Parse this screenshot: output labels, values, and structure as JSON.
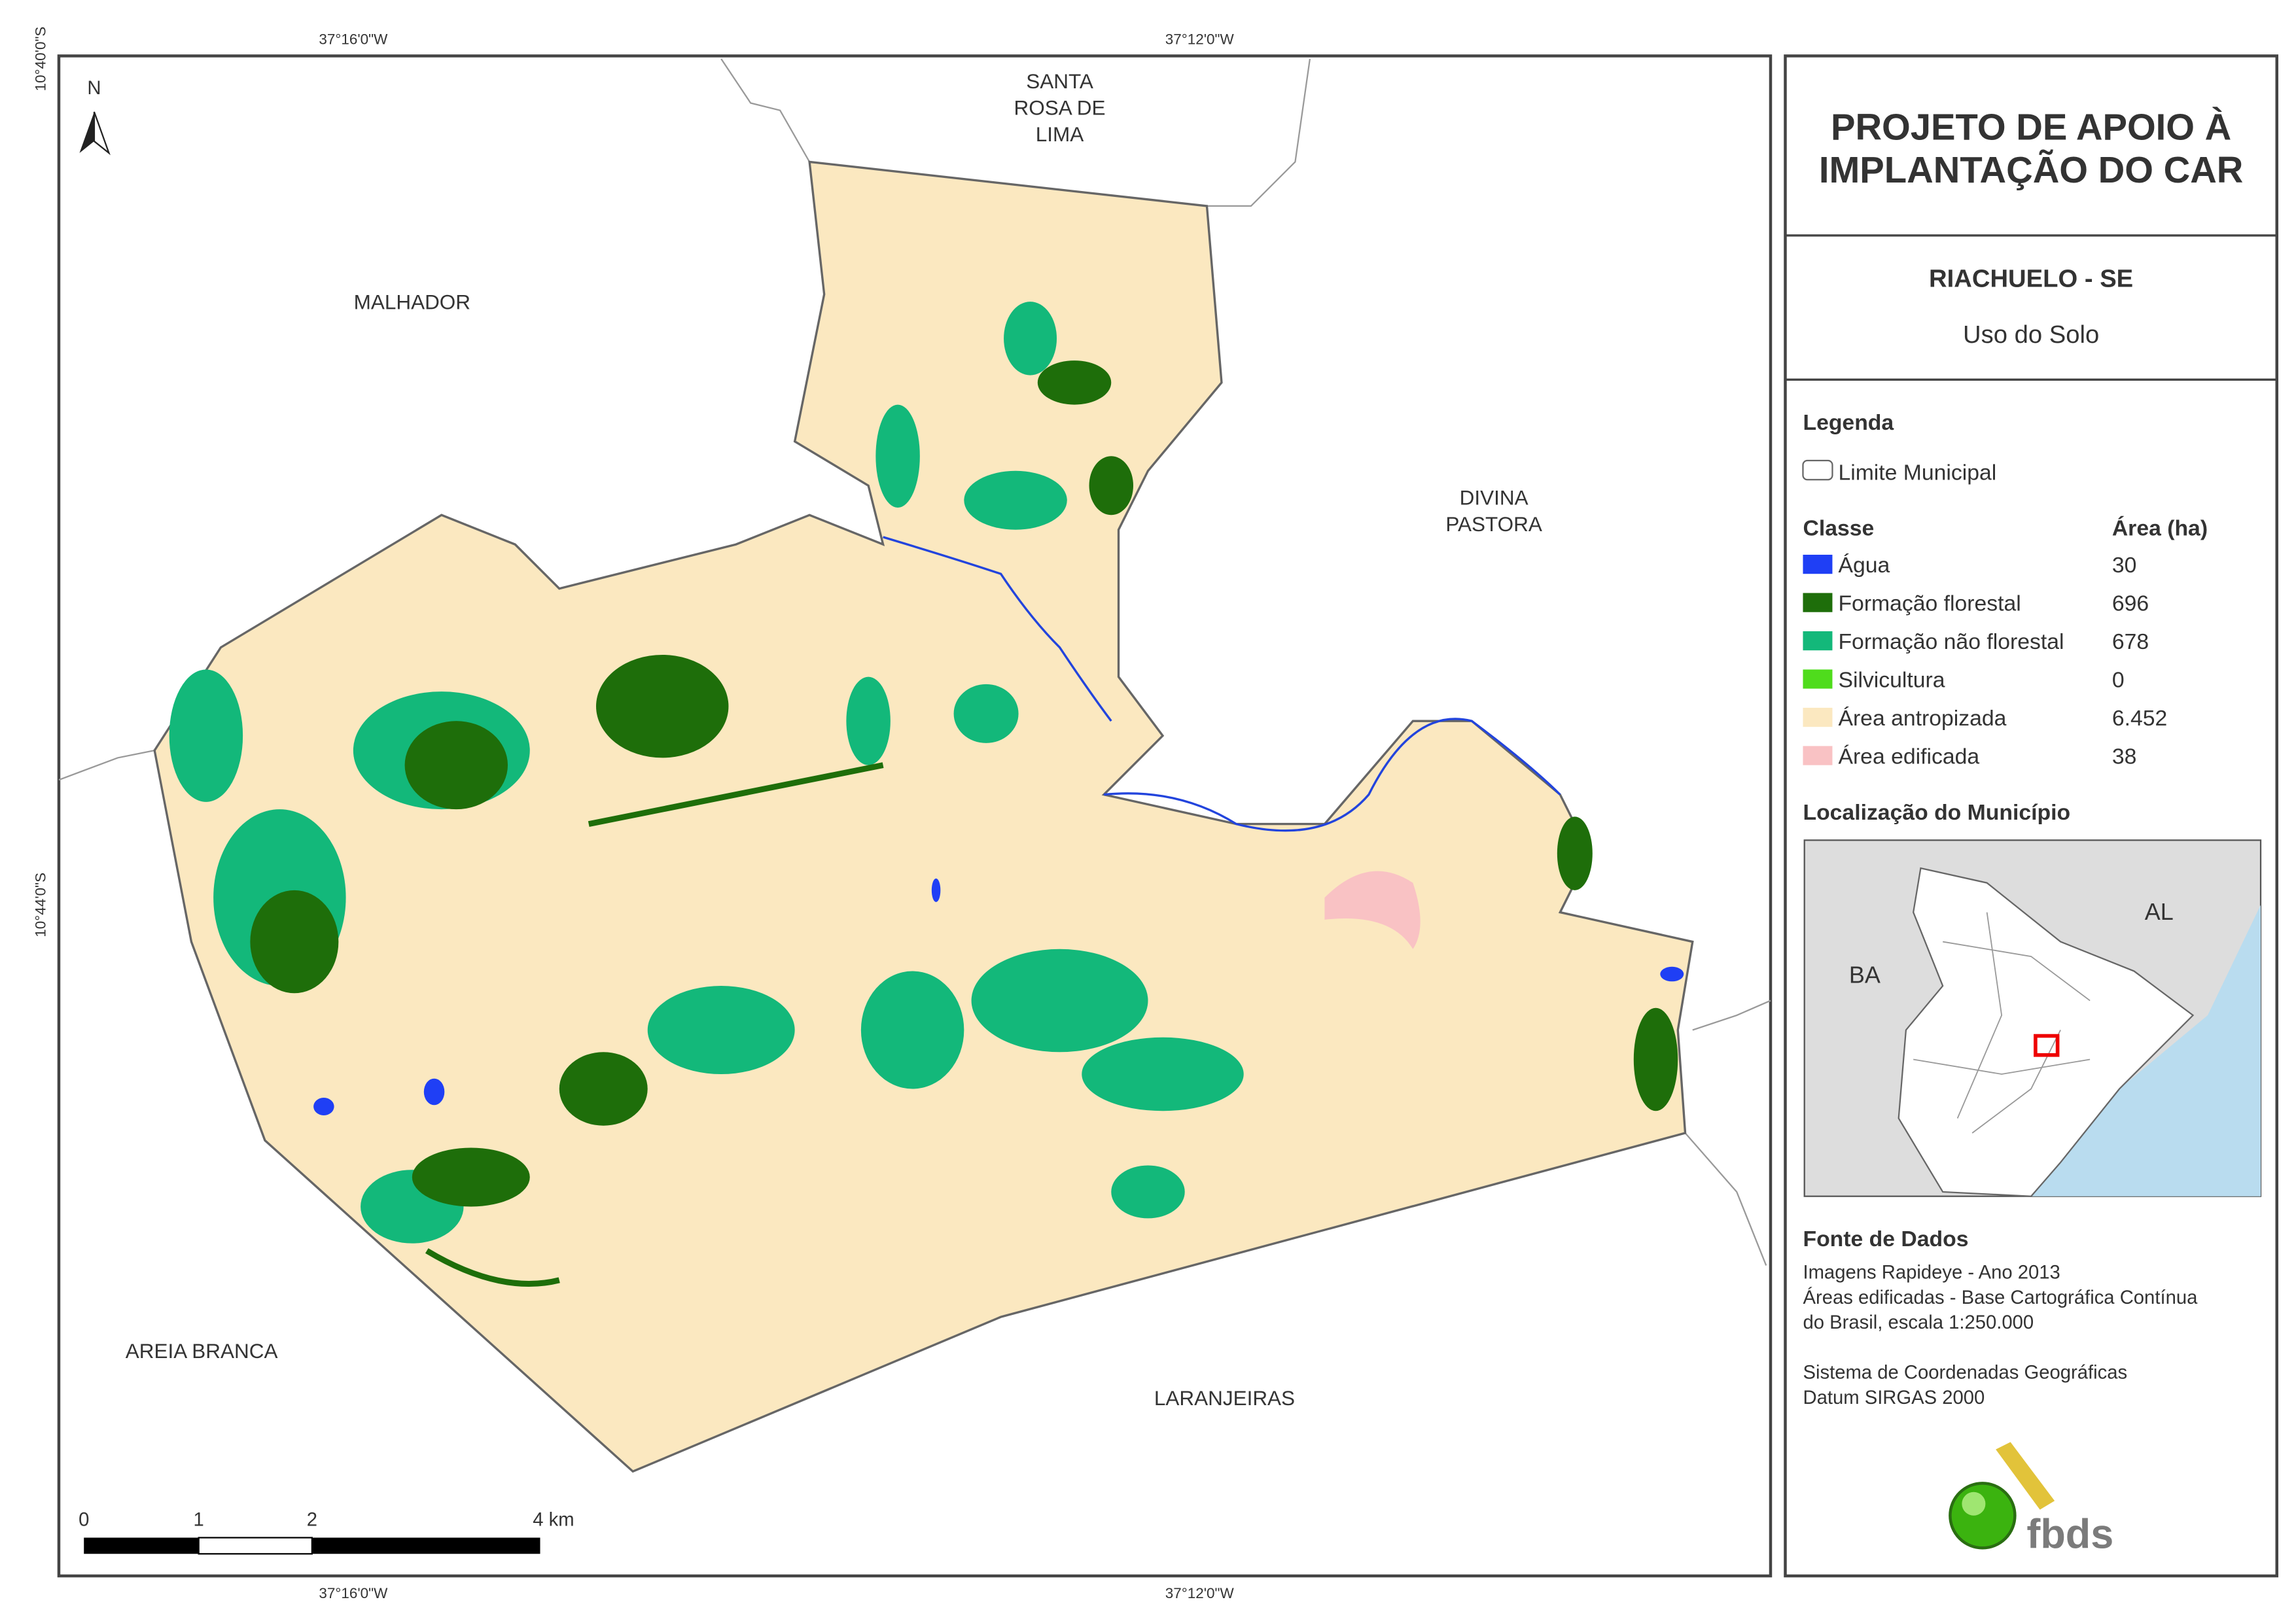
{
  "header": {
    "title": [
      "PROJETO DE APOIO À",
      "IMPLANTAÇÃO DO CAR"
    ],
    "municipality": "RIACHUELO - SE",
    "subtitle": "Uso do Solo"
  },
  "coordinates": {
    "top": [
      "37°16'0\"W",
      "37°12'0\"W"
    ],
    "bottom": [
      "37°16'0\"W",
      "37°12'0\"W"
    ],
    "left": [
      "10°40'0\"S",
      "10°44'0\"S"
    ]
  },
  "north": "N",
  "neighbors": [
    {
      "lines": [
        "MALHADOR"
      ]
    },
    {
      "lines": [
        "SANTA",
        "ROSA DE",
        "LIMA"
      ]
    },
    {
      "lines": [
        "DIVINA",
        "PASTORA"
      ]
    },
    {
      "lines": [
        "AREIA BRANCA"
      ]
    },
    {
      "lines": [
        "LARANJEIRAS"
      ]
    }
  ],
  "scale_bar": [
    "0",
    "1",
    "2",
    "4 km"
  ],
  "legend": {
    "title": "Legenda",
    "boundary": "Limite Municipal",
    "class_header": "Classe",
    "area_header": "Área (ha)",
    "rows": [
      {
        "label": "Água",
        "area": "30",
        "color": "#1f3ff5"
      },
      {
        "label": "Formação florestal",
        "area": "696",
        "color": "#1e6e0a"
      },
      {
        "label": "Formação não florestal",
        "area": "678",
        "color": "#13b87a"
      },
      {
        "label": "Silvicultura",
        "area": "0",
        "color": "#4fdc1c"
      },
      {
        "label": "Área antropizada",
        "area": "6.452",
        "color": "#fbe8c0"
      },
      {
        "label": "Área edificada",
        "area": "38",
        "color": "#f9c2c4"
      }
    ]
  },
  "location": {
    "title": "Localização do Município",
    "labels": [
      "BA",
      "AL"
    ]
  },
  "sources": {
    "title": "Fonte de Dados",
    "lines": [
      "Imagens Rapideye - Ano 2013",
      "Áreas edificadas - Base Cartográfica Contínua",
      "do Brasil, escala 1:250.000",
      "",
      "Sistema de Coordenadas Geográficas",
      "Datum SIRGAS 2000"
    ]
  },
  "logo": "fbds"
}
